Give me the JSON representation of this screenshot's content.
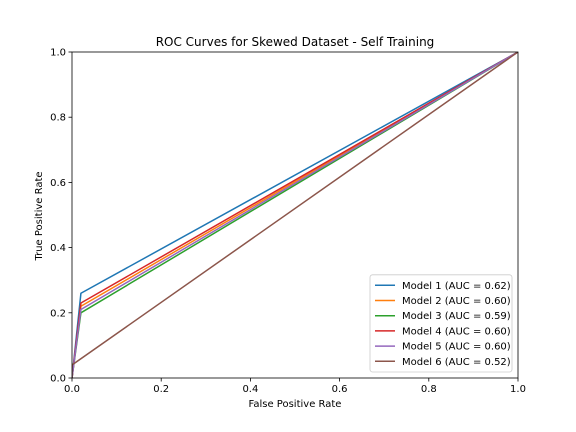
{
  "chart_data": {
    "type": "line",
    "title": "ROC Curves for Skewed Dataset - Self Training",
    "xlabel": "False Positive Rate",
    "ylabel": "True Positive Rate",
    "xlim": [
      0.0,
      1.0
    ],
    "ylim": [
      0.0,
      1.0
    ],
    "xticks": [
      "0.0",
      "0.2",
      "0.4",
      "0.6",
      "0.8",
      "1.0"
    ],
    "yticks": [
      "0.0",
      "0.2",
      "0.4",
      "0.6",
      "0.8",
      "1.0"
    ],
    "grid": false,
    "legend_position": "lower right",
    "series": [
      {
        "name": "Model 1 (AUC = 0.62)",
        "color": "#1f77b4",
        "x": [
          0.0,
          0.02,
          1.0
        ],
        "y": [
          0.0,
          0.26,
          1.0
        ]
      },
      {
        "name": "Model 2 (AUC = 0.60)",
        "color": "#ff7f0e",
        "x": [
          0.0,
          0.02,
          1.0
        ],
        "y": [
          0.0,
          0.22,
          1.0
        ]
      },
      {
        "name": "Model 3 (AUC = 0.59)",
        "color": "#2ca02c",
        "x": [
          0.0,
          0.02,
          1.0
        ],
        "y": [
          0.0,
          0.2,
          1.0
        ]
      },
      {
        "name": "Model 4 (AUC = 0.60)",
        "color": "#d62728",
        "x": [
          0.0,
          0.02,
          1.0
        ],
        "y": [
          0.0,
          0.23,
          1.0
        ]
      },
      {
        "name": "Model 5 (AUC = 0.60)",
        "color": "#9467bd",
        "x": [
          0.0,
          0.02,
          1.0
        ],
        "y": [
          0.0,
          0.21,
          1.0
        ]
      },
      {
        "name": "Model 6 (AUC = 0.52)",
        "color": "#8c564b",
        "x": [
          0.0,
          0.0,
          1.0
        ],
        "y": [
          0.0,
          0.04,
          1.0
        ]
      }
    ]
  }
}
